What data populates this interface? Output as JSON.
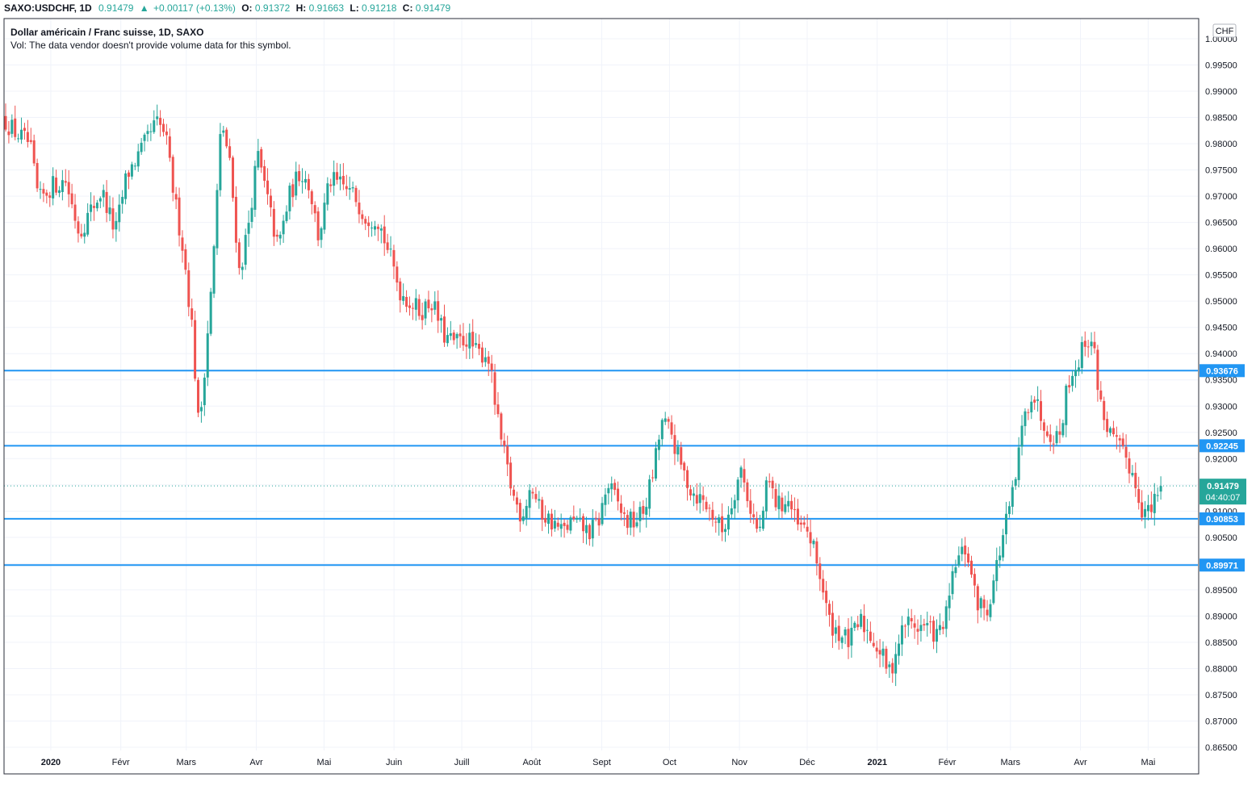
{
  "header": {
    "symbol": "SAXO:USDCHF, 1D",
    "last": "0.91479",
    "change": "+0.00117 (+0.13%)",
    "open_label": "O:",
    "open": "0.91372",
    "high_label": "H:",
    "high": "0.91663",
    "low_label": "L:",
    "low": "0.91218",
    "close_label": "C:",
    "close": "0.91479",
    "up_arrow": "▲"
  },
  "legend": {
    "title": "Dollar américain / Franc suisse, 1D, SAXO",
    "volume_note": "Vol: The data vendor doesn't provide volume data for this symbol."
  },
  "currency_button": "CHF",
  "colors": {
    "up": "#26a69a",
    "down": "#ef5350",
    "hline": "#2196f3",
    "grid": "#f0f3fa"
  },
  "chart_data": {
    "type": "candlestick",
    "ylim": [
      0.865,
      1.0
    ],
    "y_ticks": [
      "1.00000",
      "0.99500",
      "0.99000",
      "0.98500",
      "0.98000",
      "0.97500",
      "0.97000",
      "0.96500",
      "0.96000",
      "0.95500",
      "0.95000",
      "0.94500",
      "0.94000",
      "0.93500",
      "0.93000",
      "0.92500",
      "0.92000",
      "0.91500",
      "0.91000",
      "0.90500",
      "0.90000",
      "0.89500",
      "0.89000",
      "0.88500",
      "0.88000",
      "0.87500",
      "0.87000",
      "0.86500"
    ],
    "y_tick_values": [
      1.0,
      0.995,
      0.99,
      0.985,
      0.98,
      0.975,
      0.97,
      0.965,
      0.96,
      0.955,
      0.95,
      0.945,
      0.94,
      0.935,
      0.93,
      0.925,
      0.92,
      0.915,
      0.91,
      0.905,
      0.9,
      0.895,
      0.89,
      0.885,
      0.88,
      0.875,
      0.87,
      0.865
    ],
    "x_ticks": [
      {
        "label": "2020",
        "day": 20,
        "bold": true
      },
      {
        "label": "Févr",
        "day": 51
      },
      {
        "label": "Mars",
        "day": 80
      },
      {
        "label": "Avr",
        "day": 111
      },
      {
        "label": "Mai",
        "day": 141
      },
      {
        "label": "Juin",
        "day": 172
      },
      {
        "label": "Juill",
        "day": 202
      },
      {
        "label": "Août",
        "day": 233
      },
      {
        "label": "Sept",
        "day": 264
      },
      {
        "label": "Oct",
        "day": 294
      },
      {
        "label": "Nov",
        "day": 325
      },
      {
        "label": "Déc",
        "day": 355
      },
      {
        "label": "2021",
        "day": 386,
        "bold": true
      },
      {
        "label": "Févr",
        "day": 417
      },
      {
        "label": "Mars",
        "day": 445
      },
      {
        "label": "Avr",
        "day": 476
      },
      {
        "label": "Mai",
        "day": 506
      }
    ],
    "x_range_days": [
      0,
      513
    ],
    "horizontal_lines": [
      {
        "value": 0.93676,
        "label": "0.93676"
      },
      {
        "value": 0.92245,
        "label": "0.92245"
      },
      {
        "value": 0.90853,
        "label": "0.90853"
      },
      {
        "value": 0.89971,
        "label": "0.89971"
      }
    ],
    "last_price": {
      "value": 0.91479,
      "label": "0.91479",
      "countdown": "04:40:07"
    },
    "path_knots": [
      [
        0,
        0.985
      ],
      [
        6,
        0.982
      ],
      [
        12,
        0.98
      ],
      [
        16,
        0.969
      ],
      [
        22,
        0.972
      ],
      [
        28,
        0.973
      ],
      [
        34,
        0.963
      ],
      [
        40,
        0.968
      ],
      [
        44,
        0.971
      ],
      [
        50,
        0.963
      ],
      [
        55,
        0.974
      ],
      [
        62,
        0.979
      ],
      [
        68,
        0.984
      ],
      [
        72,
        0.982
      ],
      [
        76,
        0.97
      ],
      [
        80,
        0.96
      ],
      [
        84,
        0.945
      ],
      [
        87,
        0.925
      ],
      [
        90,
        0.94
      ],
      [
        93,
        0.955
      ],
      [
        97,
        0.985
      ],
      [
        101,
        0.975
      ],
      [
        105,
        0.955
      ],
      [
        109,
        0.965
      ],
      [
        113,
        0.978
      ],
      [
        118,
        0.968
      ],
      [
        122,
        0.96
      ],
      [
        127,
        0.97
      ],
      [
        132,
        0.975
      ],
      [
        136,
        0.972
      ],
      [
        140,
        0.962
      ],
      [
        145,
        0.973
      ],
      [
        150,
        0.972
      ],
      [
        156,
        0.97
      ],
      [
        161,
        0.966
      ],
      [
        166,
        0.966
      ],
      [
        172,
        0.958
      ],
      [
        176,
        0.952
      ],
      [
        180,
        0.95
      ],
      [
        185,
        0.948
      ],
      [
        190,
        0.95
      ],
      [
        196,
        0.943
      ],
      [
        201,
        0.942
      ],
      [
        206,
        0.943
      ],
      [
        210,
        0.94
      ],
      [
        215,
        0.94
      ],
      [
        220,
        0.925
      ],
      [
        226,
        0.913
      ],
      [
        230,
        0.909
      ],
      [
        234,
        0.915
      ],
      [
        238,
        0.91
      ],
      [
        243,
        0.908
      ],
      [
        248,
        0.906
      ],
      [
        252,
        0.908
      ],
      [
        256,
        0.907
      ],
      [
        260,
        0.906
      ],
      [
        264,
        0.908
      ],
      [
        268,
        0.915
      ],
      [
        272,
        0.912
      ],
      [
        276,
        0.908
      ],
      [
        280,
        0.908
      ],
      [
        284,
        0.91
      ],
      [
        288,
        0.917
      ],
      [
        292,
        0.927
      ],
      [
        296,
        0.925
      ],
      [
        300,
        0.919
      ],
      [
        305,
        0.914
      ],
      [
        310,
        0.912
      ],
      [
        315,
        0.909
      ],
      [
        319,
        0.906
      ],
      [
        323,
        0.912
      ],
      [
        327,
        0.918
      ],
      [
        331,
        0.911
      ],
      [
        335,
        0.905
      ],
      [
        339,
        0.916
      ],
      [
        343,
        0.911
      ],
      [
        348,
        0.912
      ],
      [
        352,
        0.907
      ],
      [
        357,
        0.906
      ],
      [
        362,
        0.898
      ],
      [
        366,
        0.889
      ],
      [
        370,
        0.887
      ],
      [
        375,
        0.885
      ],
      [
        380,
        0.889
      ],
      [
        385,
        0.886
      ],
      [
        390,
        0.882
      ],
      [
        393,
        0.879
      ],
      [
        396,
        0.884
      ],
      [
        400,
        0.889
      ],
      [
        405,
        0.888
      ],
      [
        410,
        0.888
      ],
      [
        414,
        0.886
      ],
      [
        418,
        0.89
      ],
      [
        422,
        0.9
      ],
      [
        427,
        0.903
      ],
      [
        431,
        0.893
      ],
      [
        436,
        0.891
      ],
      [
        440,
        0.899
      ],
      [
        444,
        0.907
      ],
      [
        448,
        0.914
      ],
      [
        452,
        0.927
      ],
      [
        456,
        0.933
      ],
      [
        460,
        0.928
      ],
      [
        464,
        0.925
      ],
      [
        468,
        0.924
      ],
      [
        472,
        0.935
      ],
      [
        476,
        0.938
      ],
      [
        480,
        0.943
      ],
      [
        483,
        0.942
      ],
      [
        486,
        0.931
      ],
      [
        490,
        0.925
      ],
      [
        494,
        0.922
      ],
      [
        498,
        0.92
      ],
      [
        502,
        0.915
      ],
      [
        505,
        0.91
      ],
      [
        509,
        0.91
      ],
      [
        512,
        0.914
      ]
    ],
    "candle_count": 367
  }
}
